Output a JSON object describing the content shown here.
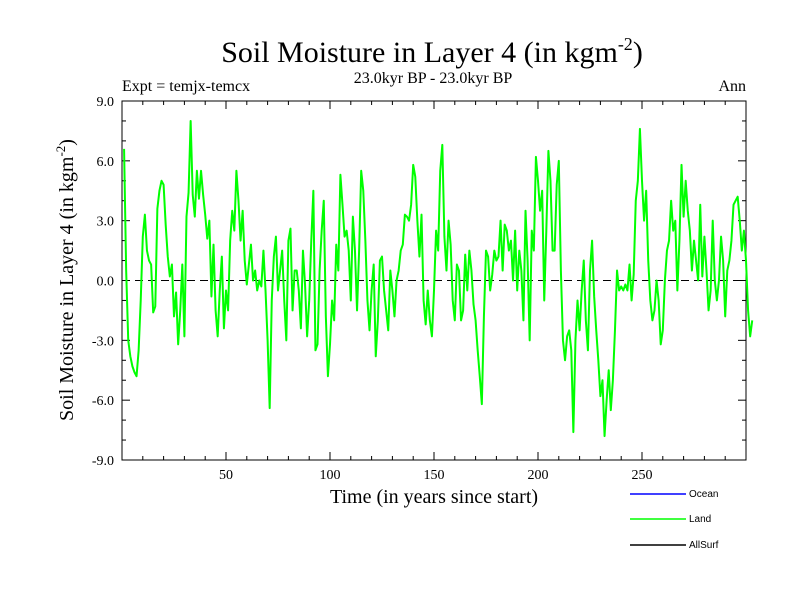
{
  "chart_data": {
    "type": "line",
    "title": "Soil Moisture in Layer 4 (in kgm",
    "title_sup": "-2",
    "title_close": ")",
    "experiment": "Expt = temjx-temcx",
    "period": "23.0kyr BP - 23.0kyr BP",
    "season": "Ann",
    "xlabel": "Time (in years since start)",
    "ylabel": "Soil Moisture in Layer 4 (in kgm",
    "ylabel_sup": "-2",
    "ylabel_close": ")",
    "xlim": [
      0,
      300
    ],
    "ylim": [
      -9,
      9
    ],
    "xticks": [
      50,
      100,
      150,
      200,
      250
    ],
    "xtick_labels": [
      "50",
      "100",
      "150",
      "200",
      "250"
    ],
    "yticks": [
      -9,
      -6,
      -3,
      0,
      3,
      6,
      9
    ],
    "ytick_labels": [
      "-9.0",
      "-6.0",
      "-3.0",
      "0.0",
      "3.0",
      "6.0",
      "9.0"
    ],
    "zero_line": "dashed",
    "legend": [
      {
        "name": "Ocean",
        "color": "#0000ff"
      },
      {
        "name": "Land",
        "color": "#00ff00"
      },
      {
        "name": "AllSurf",
        "color": "#000000"
      }
    ],
    "series": [
      {
        "name": "Land",
        "color": "#00ff00",
        "x_start": 1,
        "x_step": 1,
        "values": [
          6.6,
          0.5,
          -3.0,
          -3.8,
          -4.3,
          -4.6,
          -4.8,
          -3.5,
          -1.0,
          2.2,
          3.3,
          1.5,
          1.0,
          0.8,
          -1.6,
          -1.3,
          3.6,
          4.5,
          5.0,
          4.8,
          2.8,
          1.2,
          0.2,
          0.8,
          -1.8,
          -0.6,
          -3.2,
          -1.5,
          0.8,
          -2.8,
          3.2,
          4.4,
          8.0,
          4.3,
          3.2,
          5.5,
          4.1,
          5.5,
          4.3,
          3.3,
          2.1,
          3.0,
          -0.8,
          1.8,
          -1.5,
          -2.8,
          -0.5,
          1.2,
          -2.4,
          -0.5,
          -1.5,
          2.0,
          3.5,
          2.5,
          5.5,
          4.0,
          2.0,
          3.5,
          1.0,
          -0.2,
          0.8,
          1.8,
          0.0,
          0.5,
          -0.5,
          0.0,
          -0.3,
          1.5,
          -0.5,
          -3.0,
          -6.4,
          -1.0,
          1.2,
          2.2,
          -0.5,
          0.5,
          1.5,
          -1.0,
          -3.0,
          2.0,
          2.6,
          -1.5,
          0.5,
          0.5,
          -0.5,
          -2.4,
          1.5,
          -0.2,
          -2.8,
          -1.0,
          2.0,
          4.5,
          -3.5,
          -3.2,
          0.5,
          2.5,
          4.0,
          -1.8,
          -4.8,
          -3.2,
          -1.0,
          -2.0,
          1.8,
          0.5,
          5.3,
          3.8,
          2.2,
          2.5,
          1.5,
          -1.0,
          3.2,
          1.5,
          -1.5,
          1.5,
          5.5,
          4.5,
          2.0,
          -1.0,
          -2.5,
          -0.5,
          0.8,
          -3.8,
          -2.0,
          1.0,
          1.2,
          -0.5,
          -1.5,
          -2.5,
          0.5,
          -0.5,
          -1.8,
          0.0,
          0.5,
          1.5,
          1.8,
          3.3,
          3.2,
          3.0,
          3.8,
          5.8,
          5.2,
          3.0,
          1.2,
          3.3,
          -1.0,
          -2.2,
          -0.5,
          -2.0,
          -2.8,
          -0.5,
          2.5,
          1.5,
          5.5,
          6.8,
          2.2,
          0.5,
          3.0,
          1.8,
          -1.0,
          -2.0,
          0.8,
          0.5,
          -2.0,
          -1.5,
          1.3,
          -0.5,
          1.5,
          0.5,
          -1.2,
          -2.0,
          -3.5,
          -4.8,
          -6.2,
          -1.8,
          1.5,
          1.2,
          -0.5,
          0.3,
          1.5,
          1.0,
          1.2,
          3.0,
          0.5,
          2.8,
          2.5,
          1.5,
          2.0,
          0.0,
          2.5,
          -0.5,
          1.5,
          0.5,
          -2.0,
          3.5,
          1.0,
          -3.0,
          2.5,
          1.5,
          6.2,
          5.0,
          3.5,
          4.5,
          -1.0,
          2.5,
          6.5,
          5.0,
          1.5,
          1.5,
          4.8,
          6.0,
          0.5,
          -3.0,
          -4.0,
          -2.8,
          -2.5,
          -3.5,
          -7.6,
          -3.0,
          -1.0,
          -2.5,
          -0.5,
          1.0,
          -2.0,
          -3.5,
          0.5,
          2.0,
          -0.8,
          -2.5,
          -4.0,
          -5.8,
          -5.0,
          -7.8,
          -6.0,
          -4.5,
          -6.5,
          -5.0,
          -2.5,
          0.5,
          -0.5,
          -0.3,
          -0.5,
          -0.2,
          -0.5,
          0.8,
          -1.0,
          0.3,
          4.0,
          5.0,
          7.6,
          5.0,
          3.0,
          4.5,
          1.0,
          -1.0,
          -2.0,
          -1.5,
          0.0,
          -1.0,
          -3.2,
          -2.5,
          0.0,
          1.5,
          2.0,
          4.0,
          2.5,
          3.0,
          -0.5,
          2.0,
          5.8,
          3.2,
          5.0,
          3.5,
          2.5,
          0.5,
          2.0,
          1.0,
          0.0,
          3.8,
          0.2,
          2.2,
          0.5,
          -1.5,
          -0.5,
          3.0,
          0.0,
          -1.0,
          0.0,
          2.2,
          1.0,
          -1.8,
          0.5,
          1.0,
          2.0,
          3.8,
          4.0,
          4.2,
          3.0,
          1.5,
          2.5,
          1.0,
          -1.5,
          -2.8,
          -2.0
        ]
      }
    ]
  }
}
